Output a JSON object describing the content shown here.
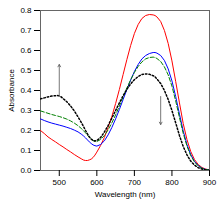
{
  "chart_data": {
    "type": "line",
    "xlabel": "Wavelength (nm)",
    "ylabel": "Absorbance",
    "xlim": [
      450,
      900
    ],
    "ylim": [
      0,
      0.8
    ],
    "xticks": [
      500,
      600,
      700,
      800,
      900
    ],
    "yticks": [
      {
        "value": 0,
        "label": "0.0"
      },
      0.1,
      0.2,
      0.3,
      0.4,
      0.5,
      0.6,
      0.7,
      0.8
    ],
    "series": [
      {
        "color": "red",
        "line_style": "solid",
        "x": [
          450,
          460,
          470,
          480,
          490,
          500,
          510,
          520,
          530,
          540,
          550,
          560,
          565,
          570,
          575,
          580,
          585,
          590,
          595,
          600,
          610,
          620,
          630,
          640,
          650,
          660,
          670,
          680,
          690,
          700,
          710,
          720,
          730,
          740,
          750,
          755,
          760,
          770,
          780,
          790,
          800,
          810,
          820,
          830,
          840,
          850,
          860,
          870,
          880,
          890,
          900
        ],
        "values": [
          0.2,
          0.185,
          0.168,
          0.155,
          0.143,
          0.13,
          0.118,
          0.105,
          0.093,
          0.08,
          0.068,
          0.057,
          0.052,
          0.05,
          0.05,
          0.053,
          0.057,
          0.065,
          0.077,
          0.092,
          0.125,
          0.165,
          0.215,
          0.27,
          0.335,
          0.405,
          0.48,
          0.555,
          0.625,
          0.685,
          0.73,
          0.76,
          0.775,
          0.78,
          0.778,
          0.775,
          0.768,
          0.745,
          0.7,
          0.635,
          0.548,
          0.445,
          0.338,
          0.235,
          0.155,
          0.095,
          0.055,
          0.03,
          0.015,
          0.007,
          0.003
        ]
      },
      {
        "color": "blue",
        "line_style": "solid",
        "x": [
          450,
          460,
          470,
          480,
          490,
          500,
          510,
          520,
          530,
          540,
          550,
          560,
          565,
          570,
          575,
          580,
          585,
          590,
          595,
          600,
          610,
          620,
          630,
          640,
          650,
          660,
          670,
          680,
          690,
          700,
          710,
          720,
          730,
          740,
          750,
          755,
          760,
          770,
          780,
          790,
          800,
          810,
          820,
          830,
          840,
          850,
          860,
          870,
          880,
          890,
          900
        ],
        "values": [
          0.258,
          0.25,
          0.243,
          0.237,
          0.232,
          0.227,
          0.222,
          0.216,
          0.21,
          0.202,
          0.193,
          0.18,
          0.172,
          0.163,
          0.153,
          0.143,
          0.135,
          0.128,
          0.124,
          0.122,
          0.13,
          0.148,
          0.178,
          0.215,
          0.258,
          0.305,
          0.355,
          0.405,
          0.452,
          0.495,
          0.53,
          0.558,
          0.575,
          0.585,
          0.59,
          0.59,
          0.587,
          0.575,
          0.55,
          0.508,
          0.448,
          0.37,
          0.282,
          0.198,
          0.13,
          0.08,
          0.046,
          0.025,
          0.012,
          0.005,
          0.002
        ]
      },
      {
        "color": "#008000",
        "line_style": "dashed",
        "x": [
          450,
          460,
          470,
          480,
          490,
          500,
          510,
          520,
          530,
          540,
          550,
          560,
          565,
          570,
          575,
          580,
          585,
          590,
          595,
          600,
          610,
          620,
          630,
          640,
          650,
          660,
          670,
          680,
          690,
          700,
          710,
          720,
          730,
          740,
          750,
          755,
          760,
          770,
          780,
          790,
          800,
          810,
          820,
          830,
          840,
          850,
          860,
          870,
          880,
          890,
          900
        ],
        "values": [
          0.298,
          0.292,
          0.286,
          0.28,
          0.275,
          0.27,
          0.264,
          0.257,
          0.248,
          0.237,
          0.224,
          0.208,
          0.198,
          0.188,
          0.177,
          0.166,
          0.157,
          0.15,
          0.146,
          0.145,
          0.155,
          0.175,
          0.203,
          0.238,
          0.278,
          0.322,
          0.368,
          0.413,
          0.453,
          0.49,
          0.52,
          0.543,
          0.558,
          0.565,
          0.567,
          0.565,
          0.56,
          0.545,
          0.518,
          0.478,
          0.422,
          0.348,
          0.265,
          0.186,
          0.122,
          0.074,
          0.043,
          0.023,
          0.011,
          0.005,
          0.002
        ]
      },
      {
        "color": "black",
        "line_style": "dotted",
        "x": [
          450,
          460,
          470,
          480,
          490,
          495,
          500,
          505,
          510,
          520,
          530,
          540,
          550,
          560,
          565,
          570,
          575,
          580,
          585,
          590,
          595,
          600,
          610,
          620,
          630,
          640,
          650,
          660,
          670,
          680,
          690,
          700,
          710,
          720,
          730,
          740,
          750,
          755,
          760,
          770,
          780,
          790,
          800,
          810,
          820,
          830,
          840,
          850,
          860,
          870,
          880,
          890,
          900
        ],
        "values": [
          0.358,
          0.363,
          0.368,
          0.372,
          0.374,
          0.375,
          0.373,
          0.368,
          0.36,
          0.344,
          0.323,
          0.298,
          0.268,
          0.236,
          0.218,
          0.2,
          0.183,
          0.168,
          0.157,
          0.15,
          0.148,
          0.15,
          0.165,
          0.192,
          0.225,
          0.262,
          0.3,
          0.338,
          0.374,
          0.406,
          0.433,
          0.454,
          0.47,
          0.48,
          0.483,
          0.481,
          0.474,
          0.468,
          0.458,
          0.435,
          0.4,
          0.355,
          0.3,
          0.238,
          0.175,
          0.12,
          0.078,
          0.047,
          0.027,
          0.014,
          0.007,
          0.003,
          0.001
        ]
      }
    ],
    "arrows": [
      {
        "x": 500,
        "y_start": 0.37,
        "y_end": 0.53,
        "color": "#555555"
      },
      {
        "x": 770,
        "y_start": 0.37,
        "y_end": 0.23,
        "color": "#555555"
      }
    ]
  }
}
